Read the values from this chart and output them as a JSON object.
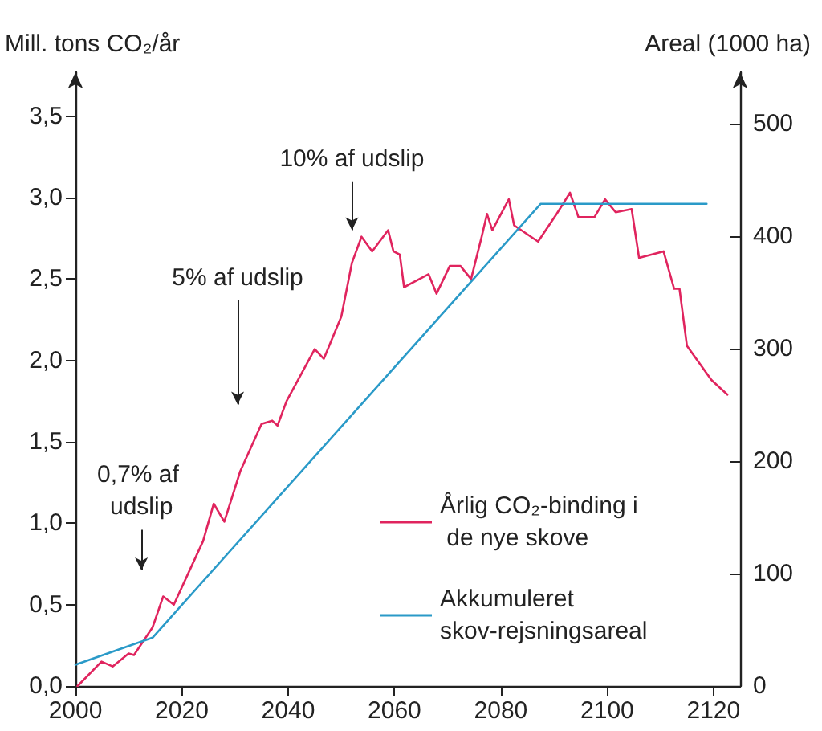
{
  "chart_data": {
    "type": "line",
    "xlim": [
      2000,
      2125
    ],
    "xticks": [
      2000,
      2020,
      2040,
      2060,
      2080,
      2100,
      2120
    ],
    "ylim": [
      0,
      3.77
    ],
    "yticks": [
      {
        "value": 0,
        "label": "0,0"
      },
      {
        "value": 0.5,
        "label": "0,5"
      },
      {
        "value": 1,
        "label": "1,0"
      },
      {
        "value": 1.5,
        "label": "1,5"
      },
      {
        "value": 2,
        "label": "2,0"
      },
      {
        "value": 2.5,
        "label": "2,5"
      },
      {
        "value": 3,
        "label": "3,0"
      },
      {
        "value": 3.5,
        "label": "3,5"
      }
    ],
    "y2lim": [
      0,
      546
    ],
    "y2ticks": [
      0,
      100,
      200,
      300,
      400,
      500
    ],
    "ylabel": "Mill. tons CO₂/år",
    "y2label": "Areal (1000 ha)",
    "grid": false,
    "legend": "bottom right",
    "marker": "none",
    "line_style": "solid",
    "series": [
      {
        "name": "Årlig CO₂-binding i de nye skove",
        "color": "#e0245e",
        "x": [
          2000.4,
          2004.9,
          2007,
          2010,
          2011,
          2014.5,
          2016.5,
          2018.5,
          2024,
          2026,
          2028,
          2031,
          2035,
          2037,
          2038,
          2039.7,
          2045,
          2046.7,
          2050,
          2052,
          2053.8,
          2055.8,
          2058.8,
          2059.8,
          2061,
          2061.8,
          2066.4,
          2067.9,
          2070.4,
          2072.4,
          2074.4,
          2076.4,
          2077.4,
          2078.4,
          2081.5,
          2082.5,
          2087,
          2090.5,
          2093,
          2094.6,
          2097.6,
          2099.6,
          2101.6,
          2104.6,
          2106,
          2110.6,
          2112.6,
          2113.6,
          2115,
          2119.6,
          2122.6
        ],
        "values": [
          0.0,
          0.15,
          0.12,
          0.2,
          0.19,
          0.36,
          0.55,
          0.5,
          0.89,
          1.12,
          1.01,
          1.32,
          1.61,
          1.63,
          1.6,
          1.75,
          2.07,
          2.01,
          2.27,
          2.6,
          2.76,
          2.67,
          2.8,
          2.67,
          2.65,
          2.45,
          2.53,
          2.41,
          2.58,
          2.58,
          2.5,
          2.76,
          2.9,
          2.8,
          2.99,
          2.83,
          2.73,
          2.9,
          3.03,
          2.88,
          2.88,
          2.99,
          2.91,
          2.93,
          2.63,
          2.67,
          2.44,
          2.44,
          2.09,
          1.88,
          1.79
        ]
      },
      {
        "name": "Akkumuleret skov-rejsningsareal",
        "color": "#2a9ac8",
        "axis": "y2",
        "x": [
          2000,
          2014.5,
          2087.5,
          2118.7
        ],
        "values": [
          19,
          43,
          429,
          429
        ]
      }
    ],
    "annotations": [
      "0,7% af udslip",
      "5% af udslip",
      "10% af udslip"
    ]
  }
}
